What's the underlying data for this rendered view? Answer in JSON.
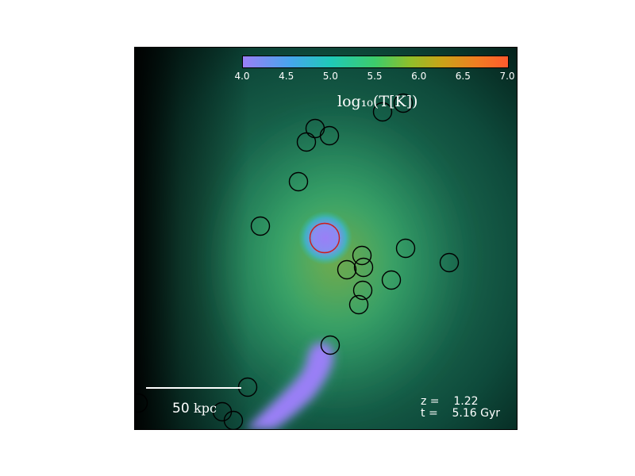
{
  "colorbar": {
    "ticks": [
      "4.0",
      "4.5",
      "5.0",
      "5.5",
      "6.0",
      "6.5",
      "7.0"
    ],
    "label": "log₁₀(T[K])",
    "min": 4.0,
    "max": 7.0
  },
  "scale_bar": {
    "value": "50",
    "unit": "kpc"
  },
  "info": {
    "z_label": "z =",
    "z_value": "1.22",
    "t_label": "t =",
    "t_value": "5.16 Gyr"
  },
  "colors": {
    "background": "#0d4a3a",
    "hot_gas": "#3dc78a",
    "cold_gas": "#9a7ff6",
    "circle": "#000000",
    "highlight_circle": "#d01818"
  }
}
